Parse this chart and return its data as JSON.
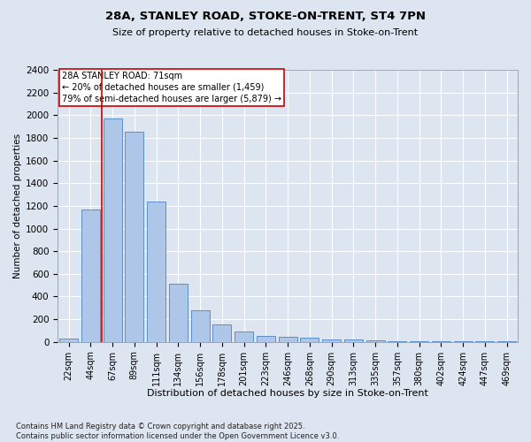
{
  "title_line1": "28A, STANLEY ROAD, STOKE-ON-TRENT, ST4 7PN",
  "title_line2": "Size of property relative to detached houses in Stoke-on-Trent",
  "xlabel": "Distribution of detached houses by size in Stoke-on-Trent",
  "ylabel": "Number of detached properties",
  "categories": [
    "22sqm",
    "44sqm",
    "67sqm",
    "89sqm",
    "111sqm",
    "134sqm",
    "156sqm",
    "178sqm",
    "201sqm",
    "223sqm",
    "246sqm",
    "268sqm",
    "290sqm",
    "313sqm",
    "335sqm",
    "357sqm",
    "380sqm",
    "402sqm",
    "424sqm",
    "447sqm",
    "469sqm"
  ],
  "values": [
    30,
    1170,
    1970,
    1855,
    1240,
    515,
    275,
    155,
    90,
    50,
    42,
    35,
    22,
    18,
    10,
    5,
    2,
    2,
    2,
    2,
    2
  ],
  "bar_color": "#aec6e8",
  "bar_edgecolor": "#5b8fc9",
  "ylim": [
    0,
    2400
  ],
  "yticks": [
    0,
    200,
    400,
    600,
    800,
    1000,
    1200,
    1400,
    1600,
    1800,
    2000,
    2200,
    2400
  ],
  "vline_x": 1.5,
  "vline_color": "#cc0000",
  "annotation_text": "28A STANLEY ROAD: 71sqm\n← 20% of detached houses are smaller (1,459)\n79% of semi-detached houses are larger (5,879) →",
  "annotation_box_color": "#cc0000",
  "background_color": "#dde5f0",
  "plot_bg_color": "#dde5f0",
  "footer_line1": "Contains HM Land Registry data © Crown copyright and database right 2025.",
  "footer_line2": "Contains public sector information licensed under the Open Government Licence v3.0."
}
